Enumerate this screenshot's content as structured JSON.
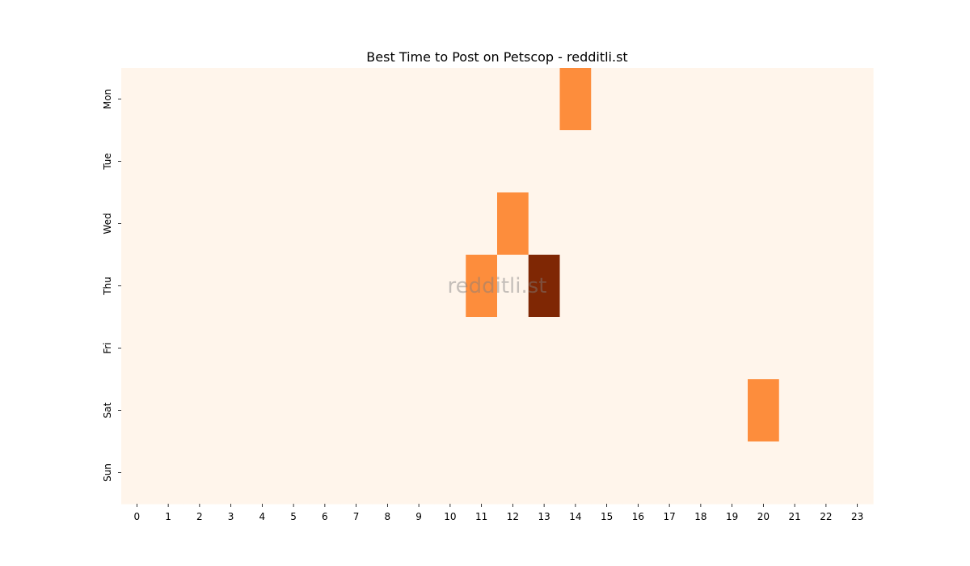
{
  "chart_data": {
    "type": "heatmap",
    "title": "Best Time to Post on Petscop - redditli.st",
    "watermark": "redditli.st",
    "x_labels": [
      "0",
      "1",
      "2",
      "3",
      "4",
      "5",
      "6",
      "7",
      "8",
      "9",
      "10",
      "11",
      "12",
      "13",
      "14",
      "15",
      "16",
      "17",
      "18",
      "19",
      "20",
      "21",
      "22",
      "23"
    ],
    "y_labels": [
      "Mon",
      "Tue",
      "Wed",
      "Thu",
      "Fri",
      "Sat",
      "Sun"
    ],
    "values": [
      [
        0,
        0,
        0,
        0,
        0,
        0,
        0,
        0,
        0,
        0,
        0,
        0,
        0,
        0,
        1,
        0,
        0,
        0,
        0,
        0,
        0,
        0,
        0,
        0
      ],
      [
        0,
        0,
        0,
        0,
        0,
        0,
        0,
        0,
        0,
        0,
        0,
        0,
        0,
        0,
        0,
        0,
        0,
        0,
        0,
        0,
        0,
        0,
        0,
        0
      ],
      [
        0,
        0,
        0,
        0,
        0,
        0,
        0,
        0,
        0,
        0,
        0,
        0,
        1,
        0,
        0,
        0,
        0,
        0,
        0,
        0,
        0,
        0,
        0,
        0
      ],
      [
        0,
        0,
        0,
        0,
        0,
        0,
        0,
        0,
        0,
        0,
        0,
        1,
        0,
        2,
        0,
        0,
        0,
        0,
        0,
        0,
        0,
        0,
        0,
        0
      ],
      [
        0,
        0,
        0,
        0,
        0,
        0,
        0,
        0,
        0,
        0,
        0,
        0,
        0,
        0,
        0,
        0,
        0,
        0,
        0,
        0,
        0,
        0,
        0,
        0
      ],
      [
        0,
        0,
        0,
        0,
        0,
        0,
        0,
        0,
        0,
        0,
        0,
        0,
        0,
        0,
        0,
        0,
        0,
        0,
        0,
        0,
        1,
        0,
        0,
        0
      ],
      [
        0,
        0,
        0,
        0,
        0,
        0,
        0,
        0,
        0,
        0,
        0,
        0,
        0,
        0,
        0,
        0,
        0,
        0,
        0,
        0,
        0,
        0,
        0,
        0
      ]
    ],
    "colormap": [
      "#fff5eb",
      "#fd8d3c",
      "#7f2704"
    ],
    "colorbar": false,
    "grid": false
  }
}
